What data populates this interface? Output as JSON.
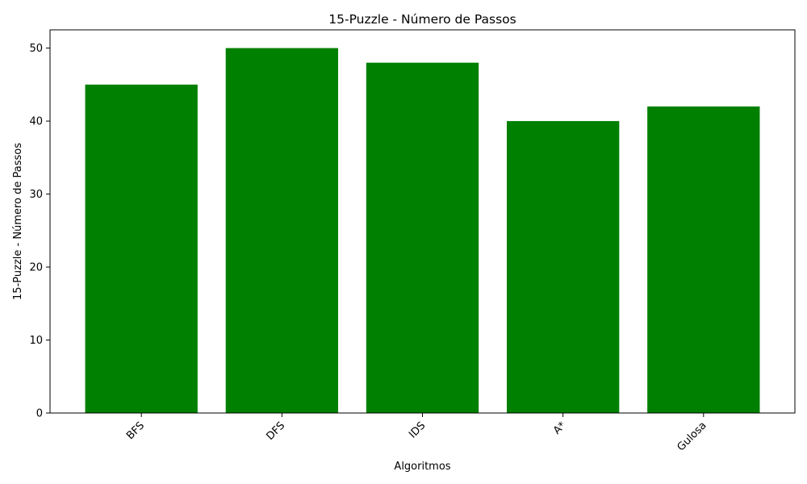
{
  "chart_data": {
    "type": "bar",
    "title": "15-Puzzle - Número de Passos",
    "xlabel": "Algoritmos",
    "ylabel": "15-Puzzle - Número de Passos",
    "categories": [
      "BFS",
      "DFS",
      "IDS",
      "A*",
      "Gulosa"
    ],
    "values": [
      45,
      50,
      48,
      40,
      42
    ],
    "ylim": [
      0,
      52.5
    ],
    "yticks": [
      0,
      10,
      20,
      30,
      40,
      50
    ],
    "bar_color": "#008000",
    "grid": false,
    "legend": "none"
  }
}
